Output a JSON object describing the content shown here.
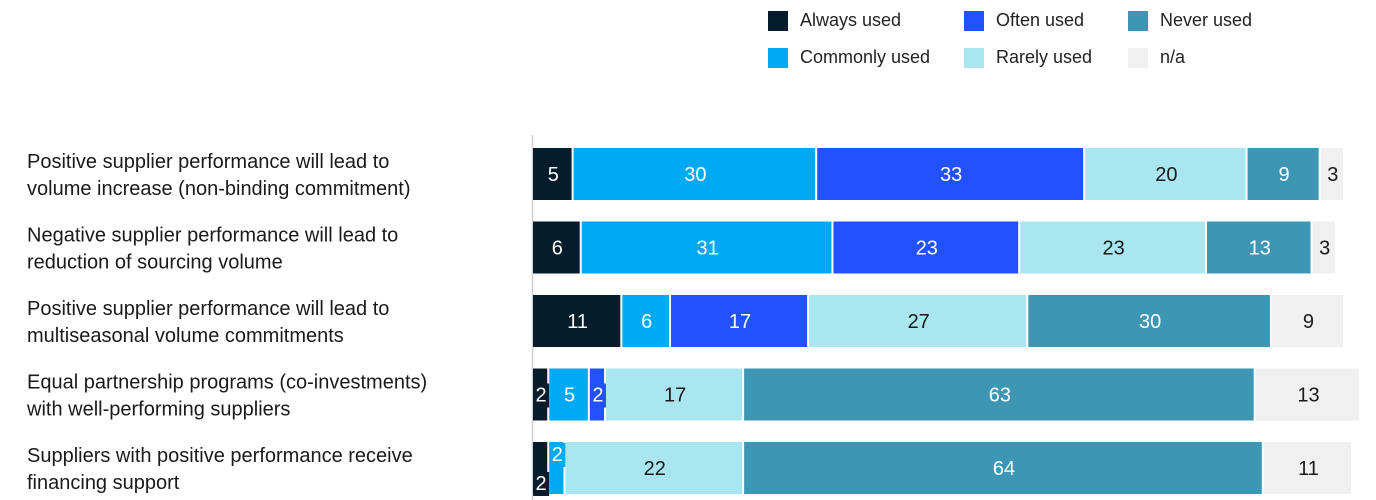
{
  "chart_data": {
    "type": "bar",
    "orientation": "horizontal",
    "stacked": true,
    "categories": [
      "Positive supplier performance will lead to volume increase (non-binding commitment)",
      "Negative supplier performance will lead to reduction of sourcing volume",
      "Positive supplier performance will lead to multiseasonal volume commitments",
      "Equal partnership programs (co-investments) with well-performing suppliers",
      "Suppliers with positive performance receive financing support"
    ],
    "category_lines": [
      [
        "Positive supplier performance will lead to",
        "volume increase (non-binding commitment)"
      ],
      [
        "Negative supplier performance will lead to",
        "reduction of sourcing volume"
      ],
      [
        "Positive supplier performance will lead to",
        "multiseasonal volume commitments"
      ],
      [
        "Equal partnership programs (co-investments)",
        "with well-performing suppliers"
      ],
      [
        "Suppliers with positive performance receive",
        "financing support"
      ]
    ],
    "series": [
      {
        "name": "Always used",
        "color": "#051c2c",
        "label_color": "#ffffff",
        "values": [
          5,
          6,
          11,
          2,
          2
        ]
      },
      {
        "name": "Commonly used",
        "color": "#00a9f4",
        "label_color": "#ffffff",
        "values": [
          30,
          31,
          6,
          5,
          2
        ]
      },
      {
        "name": "Often used",
        "color": "#2251ff",
        "label_color": "#ffffff",
        "values": [
          33,
          23,
          17,
          2,
          0
        ]
      },
      {
        "name": "Rarely used",
        "color": "#aae6f0",
        "label_color": "#1a1a1a",
        "values": [
          20,
          23,
          27,
          17,
          22
        ]
      },
      {
        "name": "Never used",
        "color": "#3c96b4",
        "label_color": "#ffffff",
        "values": [
          9,
          13,
          30,
          63,
          64
        ]
      },
      {
        "name": "n/a",
        "color": "#f0f0f0",
        "label_color": "#1a1a1a",
        "values": [
          3,
          3,
          9,
          13,
          11
        ]
      }
    ],
    "xlim": [
      0,
      100
    ],
    "legend": "top-right",
    "grid": false
  }
}
